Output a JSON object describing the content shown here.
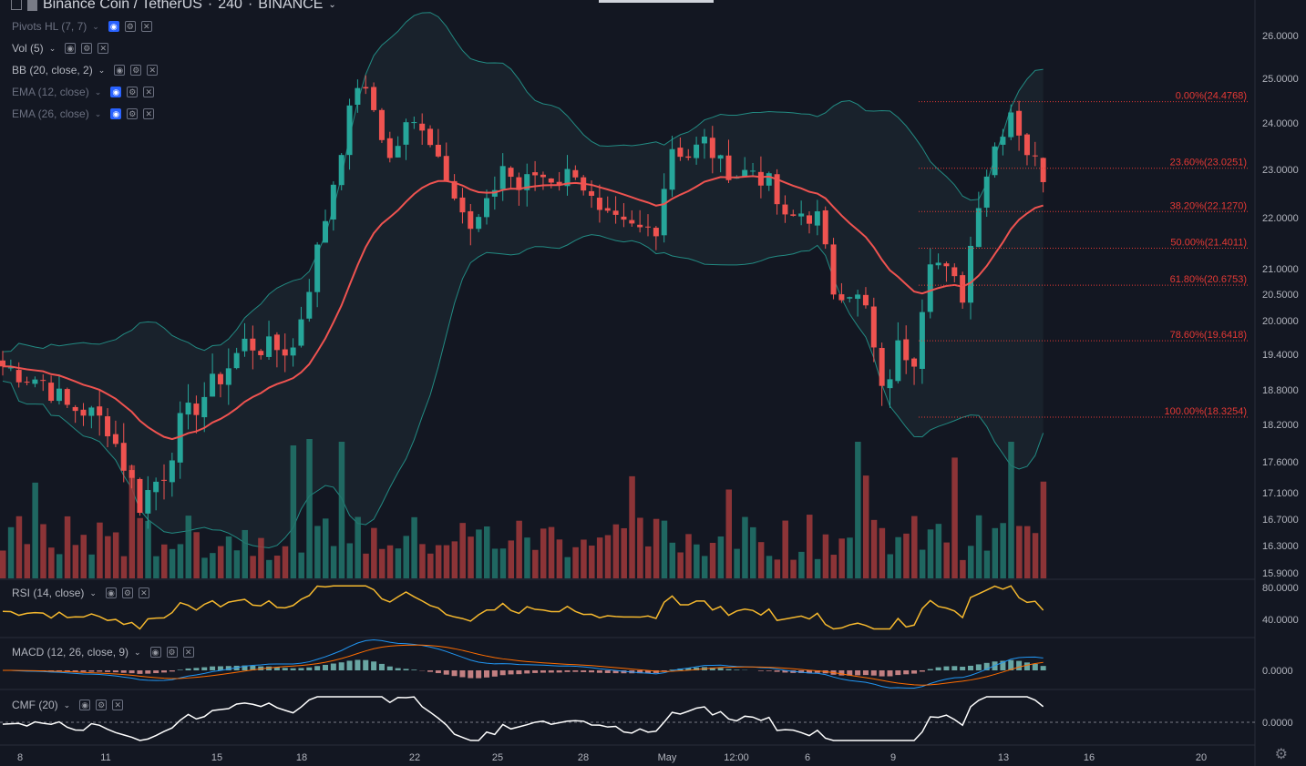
{
  "title_bar": {
    "symbol": "Binance Coin / TetherUS",
    "interval": "240",
    "exchange": "BINANCE",
    "separator": "·"
  },
  "legends": [
    {
      "label": "Pivots HL (7, 7)",
      "dim": true,
      "eye_active": true
    },
    {
      "label": "Vol (5)",
      "dim": false,
      "eye_active": false
    },
    {
      "label": "BB (20, close, 2)",
      "dim": false,
      "eye_active": false
    },
    {
      "label": "EMA (12, close)",
      "dim": true,
      "eye_active": true
    },
    {
      "label": "EMA (26, close)",
      "dim": true,
      "eye_active": true
    }
  ],
  "panes": {
    "rsi": {
      "label": "RSI (14, close)",
      "ticks": [
        "80.0000",
        "40.0000"
      ]
    },
    "macd": {
      "label": "MACD (12, 26, close, 9)",
      "ticks": [
        "0.0000"
      ]
    },
    "cmf": {
      "label": "CMF (20)",
      "ticks": [
        "0.0000"
      ]
    }
  },
  "colors": {
    "background": "#131722",
    "up": "#26a69a",
    "down": "#ef5350",
    "bb": "#26a69a",
    "ema": "#ef5350",
    "rsi": "#f5b82e",
    "fib": "#e53935",
    "axis_text": "#b2b5be"
  },
  "chart_data": {
    "type": "candlestick",
    "symbol": "Binance Coin / TetherUS",
    "interval": "240",
    "price_axis_ticks": [
      "26.0000",
      "25.0000",
      "24.0000",
      "23.0000",
      "22.0000",
      "21.0000",
      "20.5000",
      "20.0000",
      "19.4000",
      "18.8000",
      "18.2000",
      "17.6000",
      "17.1000",
      "16.7000",
      "16.3000",
      "15.9000"
    ],
    "time_axis_labels": [
      "8",
      "11",
      "15",
      "18",
      "22",
      "25",
      "28",
      "May",
      "12:00",
      "6",
      "9",
      "13",
      "16",
      "20"
    ],
    "fib_levels": [
      {
        "label": "0.00%(24.4768)",
        "price": 24.4768
      },
      {
        "label": "23.60%(23.0251)",
        "price": 23.0251
      },
      {
        "label": "38.20%(22.1270)",
        "price": 22.127
      },
      {
        "label": "50.00%(21.4011)",
        "price": 21.4011
      },
      {
        "label": "61.80%(20.6753)",
        "price": 20.6753
      },
      {
        "label": "78.60%(19.6418)",
        "price": 19.6418
      },
      {
        "label": "100.00%(18.3254)",
        "price": 18.3254
      }
    ],
    "close_path": [
      [
        0,
        19.2
      ],
      [
        5,
        18.95
      ],
      [
        8,
        18.5
      ],
      [
        10,
        18.45
      ],
      [
        13,
        18.2
      ],
      [
        17,
        16.95
      ],
      [
        20,
        17.45
      ],
      [
        22,
        18.2
      ],
      [
        25,
        18.7
      ],
      [
        28,
        19.2
      ],
      [
        30,
        19.6
      ],
      [
        33,
        19.5
      ],
      [
        36,
        19.5
      ],
      [
        38,
        20.7
      ],
      [
        40,
        22.0
      ],
      [
        42,
        23.5
      ],
      [
        44,
        24.9
      ],
      [
        46,
        24.3
      ],
      [
        48,
        23.2
      ],
      [
        50,
        23.9
      ],
      [
        52,
        24.0
      ],
      [
        54,
        23.3
      ],
      [
        56,
        22.6
      ],
      [
        58,
        21.7
      ],
      [
        60,
        22.2
      ],
      [
        62,
        23.1
      ],
      [
        64,
        22.6
      ],
      [
        66,
        22.9
      ],
      [
        69,
        22.8
      ],
      [
        71,
        23.0
      ],
      [
        74,
        22.0
      ],
      [
        77,
        21.8
      ],
      [
        79,
        21.75
      ],
      [
        81,
        21.85
      ],
      [
        83,
        23.5
      ],
      [
        85,
        23.3
      ],
      [
        87,
        23.6
      ],
      [
        89,
        23.1
      ],
      [
        91,
        22.9
      ],
      [
        93,
        23.0
      ],
      [
        95,
        22.7
      ],
      [
        97,
        21.9
      ],
      [
        99,
        22.1
      ],
      [
        101,
        22.0
      ],
      [
        103,
        20.6
      ],
      [
        105,
        20.6
      ],
      [
        107,
        20.2
      ],
      [
        109,
        18.7
      ],
      [
        111,
        19.5
      ],
      [
        113,
        19.4
      ],
      [
        115,
        21.3
      ],
      [
        117,
        20.9
      ],
      [
        119,
        20.5
      ],
      [
        121,
        22.4
      ],
      [
        123,
        23.5
      ],
      [
        125,
        24.3
      ],
      [
        127,
        23.4
      ],
      [
        129,
        22.9
      ]
    ],
    "bar_count": 130
  }
}
